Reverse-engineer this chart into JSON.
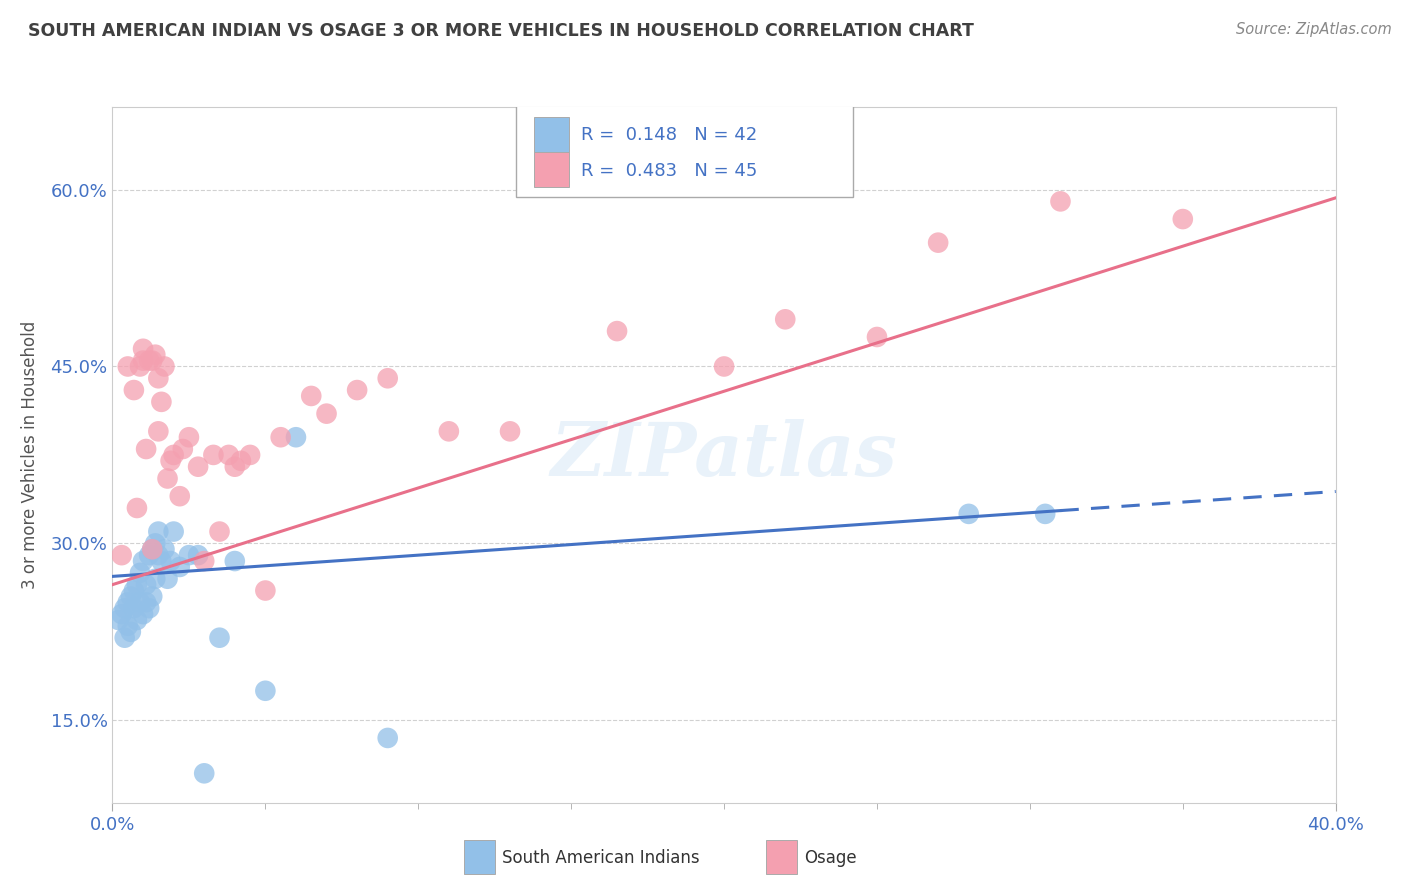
{
  "title": "SOUTH AMERICAN INDIAN VS OSAGE 3 OR MORE VEHICLES IN HOUSEHOLD CORRELATION CHART",
  "source": "Source: ZipAtlas.com",
  "ylabel": "3 or more Vehicles in Household",
  "xmin": 0.0,
  "xmax": 0.4,
  "ymin": 0.08,
  "ymax": 0.67,
  "ytick_positions": [
    0.15,
    0.3,
    0.45,
    0.6
  ],
  "ytick_labels": [
    "15.0%",
    "30.0%",
    "45.0%",
    "60.0%"
  ],
  "xtick_positions": [
    0.0,
    0.4
  ],
  "xtick_labels": [
    "0.0%",
    "40.0%"
  ],
  "legend_r1": "R =  0.148",
  "legend_n1": "N = 42",
  "legend_r2": "R =  0.483",
  "legend_n2": "N = 45",
  "color_blue": "#92C0E8",
  "color_pink": "#F4A0B0",
  "color_blue_line": "#4472C4",
  "color_pink_line": "#E8708A",
  "color_axis_text": "#4472C4",
  "color_title": "#404040",
  "watermark": "ZIPatlas",
  "blue_line_intercept": 0.272,
  "blue_line_slope": 0.18,
  "blue_line_solid_end": 0.31,
  "pink_line_intercept": 0.265,
  "pink_line_slope": 0.82,
  "blue_x": [
    0.002,
    0.003,
    0.004,
    0.004,
    0.005,
    0.005,
    0.006,
    0.006,
    0.007,
    0.007,
    0.008,
    0.008,
    0.009,
    0.009,
    0.01,
    0.01,
    0.011,
    0.011,
    0.012,
    0.012,
    0.013,
    0.013,
    0.014,
    0.014,
    0.015,
    0.015,
    0.016,
    0.017,
    0.018,
    0.019,
    0.02,
    0.022,
    0.025,
    0.028,
    0.03,
    0.035,
    0.04,
    0.05,
    0.06,
    0.09,
    0.28,
    0.305
  ],
  "blue_y": [
    0.235,
    0.24,
    0.22,
    0.245,
    0.23,
    0.25,
    0.225,
    0.255,
    0.245,
    0.26,
    0.235,
    0.265,
    0.25,
    0.275,
    0.24,
    0.285,
    0.25,
    0.265,
    0.245,
    0.29,
    0.255,
    0.295,
    0.3,
    0.27,
    0.29,
    0.31,
    0.285,
    0.295,
    0.27,
    0.285,
    0.31,
    0.28,
    0.29,
    0.29,
    0.105,
    0.22,
    0.285,
    0.175,
    0.39,
    0.135,
    0.325,
    0.325
  ],
  "pink_x": [
    0.003,
    0.005,
    0.007,
    0.008,
    0.009,
    0.01,
    0.01,
    0.011,
    0.012,
    0.013,
    0.013,
    0.014,
    0.015,
    0.015,
    0.016,
    0.017,
    0.018,
    0.019,
    0.02,
    0.022,
    0.023,
    0.025,
    0.028,
    0.03,
    0.033,
    0.035,
    0.038,
    0.04,
    0.042,
    0.045,
    0.05,
    0.055,
    0.065,
    0.07,
    0.08,
    0.09,
    0.11,
    0.13,
    0.165,
    0.2,
    0.22,
    0.25,
    0.27,
    0.31,
    0.35
  ],
  "pink_y": [
    0.29,
    0.45,
    0.43,
    0.33,
    0.45,
    0.455,
    0.465,
    0.38,
    0.455,
    0.295,
    0.455,
    0.46,
    0.44,
    0.395,
    0.42,
    0.45,
    0.355,
    0.37,
    0.375,
    0.34,
    0.38,
    0.39,
    0.365,
    0.285,
    0.375,
    0.31,
    0.375,
    0.365,
    0.37,
    0.375,
    0.26,
    0.39,
    0.425,
    0.41,
    0.43,
    0.44,
    0.395,
    0.395,
    0.48,
    0.45,
    0.49,
    0.475,
    0.555,
    0.59,
    0.575
  ]
}
